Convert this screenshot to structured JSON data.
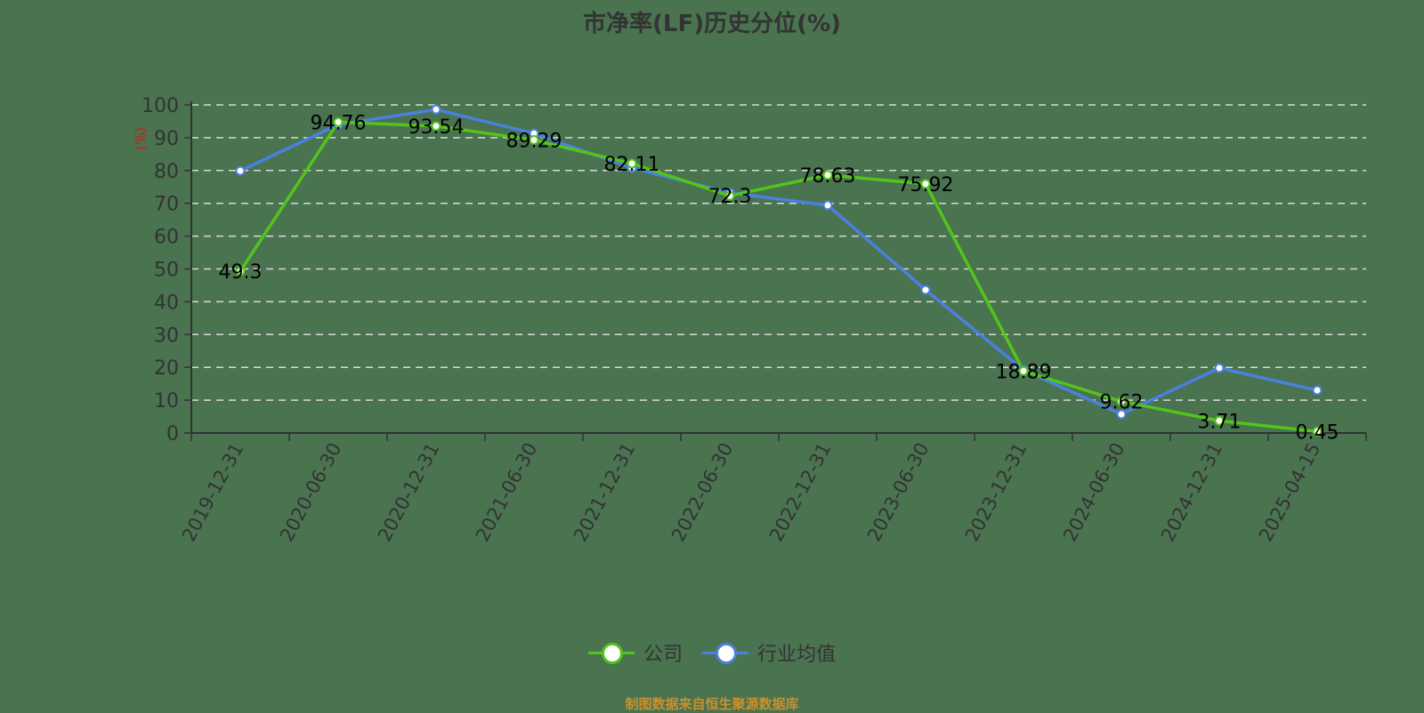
{
  "title": "市净率(LF)历史分位(%)",
  "footer": "制图数据来自恒生聚源数据库",
  "legend": [
    {
      "label": "公司",
      "color": "#52c41a"
    },
    {
      "label": "行业均值",
      "color": "#4a80e0"
    }
  ],
  "colors": {
    "background": "#4a7350",
    "company": "#52c41a",
    "industry": "#4a80e0",
    "grid": "#d9d9d9",
    "axis": "#333333",
    "unit_label": "#e01010",
    "footer": "#c9912e"
  },
  "chart_data": {
    "type": "line",
    "title": "市净率(LF)历史分位(%)",
    "xlabel": "",
    "ylabel": "(%)",
    "ylim": [
      0,
      100
    ],
    "yticks": [
      0,
      10,
      20,
      30,
      40,
      50,
      60,
      70,
      80,
      90,
      100
    ],
    "grid": true,
    "legend_position": "bottom",
    "categories": [
      "2019-12-31",
      "2020-06-30",
      "2020-12-31",
      "2021-06-30",
      "2021-12-31",
      "2022-06-30",
      "2022-12-31",
      "2023-06-30",
      "2023-12-31",
      "2024-06-30",
      "2024-12-31",
      "2025-04-15"
    ],
    "series": [
      {
        "name": "公司",
        "values": [
          49.3,
          94.76,
          93.54,
          89.29,
          82.11,
          72.3,
          78.63,
          75.92,
          18.89,
          9.62,
          3.71,
          0.45
        ],
        "labeled": true
      },
      {
        "name": "行业均值",
        "values": [
          79.9,
          94.0,
          98.6,
          91.3,
          80.8,
          73.2,
          69.4,
          43.6,
          19.2,
          5.7,
          19.8,
          13.0
        ],
        "labeled": false
      }
    ]
  }
}
